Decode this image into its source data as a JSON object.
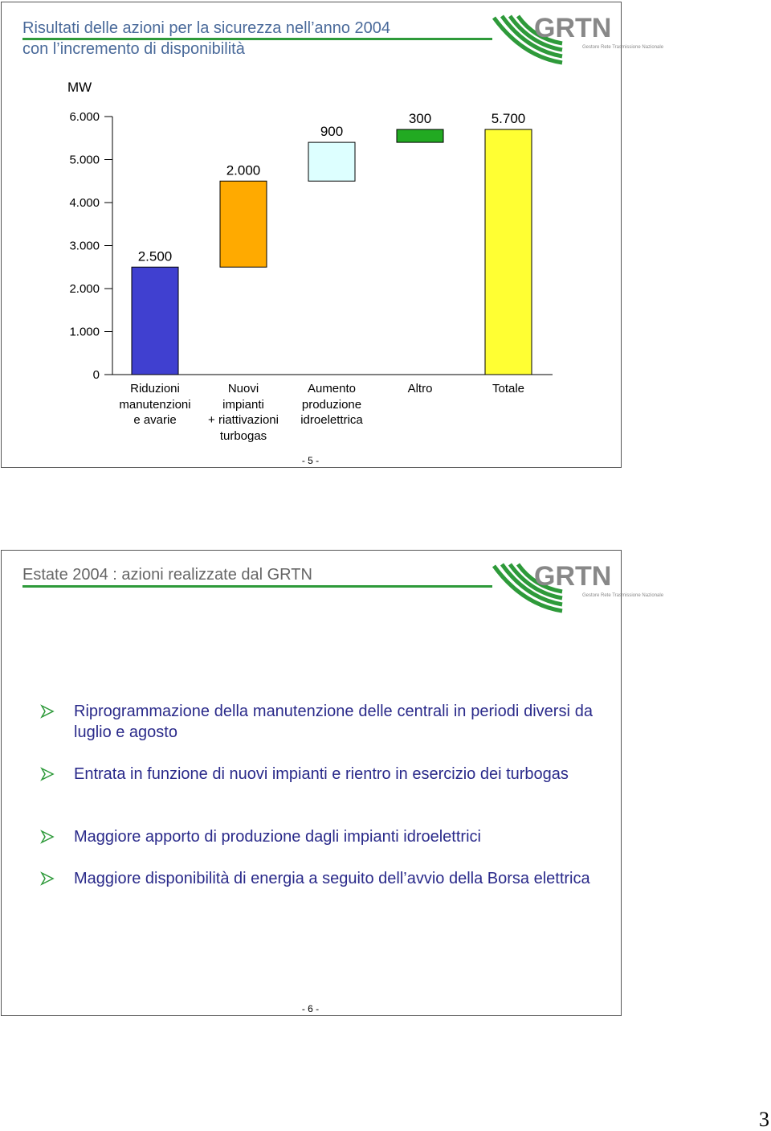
{
  "logo_text": "GRTN",
  "logo_subtext": "Gestore Rete Trasmissione Nazionale",
  "slides": [
    {
      "title": [
        "Risultati delle azioni per la sicurezza nell’anno 2004",
        "con l’incremento di disponibilità"
      ],
      "page": "- 5 -"
    },
    {
      "title": [
        "Estate 2004 : azioni realizzate dal GRTN"
      ],
      "page": "- 6 -",
      "bullets": [
        "Riprogrammazione della manutenzione delle centrali in periodi diversi da luglio e agosto",
        "Entrata in funzione di nuovi impianti e rientro in esercizio dei turbogas",
        "Maggiore apporto di produzione dagli impianti idroelettrici",
        "Maggiore disponibilità di energia a seguito dell’avvio della Borsa elettrica"
      ]
    }
  ],
  "chart_data": {
    "type": "waterfall",
    "y_label": "MW",
    "categories": [
      "Riduzioni\nmanutenzioni\ne avarie",
      "Nuovi\nimpianti\n+ riattivazioni\nturbogas",
      "Aumento\nproduzione\nidroelettrica",
      "Altro",
      "Totale"
    ],
    "values": [
      2500,
      2000,
      900,
      300,
      5700
    ],
    "value_labels": [
      "2.500",
      "2.000",
      "900",
      "300",
      "5.700"
    ],
    "is_total": [
      false,
      false,
      false,
      false,
      true
    ],
    "colors": [
      "#4040d0",
      "#ffaa00",
      "#ddffff",
      "#22aa22",
      "#ffff33"
    ],
    "ylim": [
      0,
      6000
    ],
    "yticks": [
      0,
      {
        "value": 1000,
        "label": "1.000"
      },
      {
        "value": 2000,
        "label": "2.000"
      },
      {
        "value": 3000,
        "label": "3.000"
      },
      {
        "value": 4000,
        "label": "4.000"
      },
      {
        "value": 5000,
        "label": "5.000"
      },
      {
        "value": 6000,
        "label": "6.000"
      }
    ]
  },
  "page_number": "3"
}
